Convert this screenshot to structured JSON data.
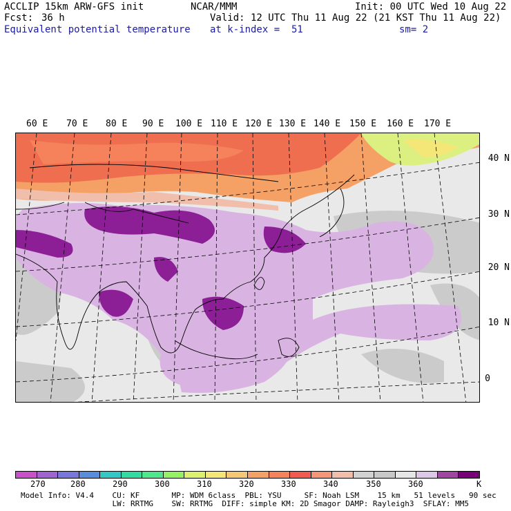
{
  "header": {
    "model": "ACCLIP 15km ARW-GFS init",
    "center": "NCAR/MMM",
    "init": "Init: 00 UTC Wed 10 Aug 22",
    "fcst_label": "Fcst:",
    "fcst_value": "36 h",
    "valid": "Valid: 12 UTC Thu 11 Aug 22 (21 KST Thu 11 Aug 22)",
    "field": "Equivalent potential temperature",
    "level": "at k-index =  51",
    "smoothing": "sm= 2"
  },
  "map": {
    "lon_labels": [
      "60 E",
      "70 E",
      "80 E",
      "90 E",
      "100 E",
      "110 E",
      "120 E",
      "130 E",
      "140 E",
      "150 E",
      "160 E",
      "170 E"
    ],
    "lat_labels": [
      "40 N",
      "30 N",
      "20 N",
      "10 N",
      "0"
    ],
    "colors": {
      "ocean_base": "#e6e6e6",
      "dark_purple": "#8c1e96",
      "light_purple": "#d2aadc",
      "north_red": "#f06e50",
      "north_orange": "#f5a064",
      "yellow_green": "#dcf082",
      "grey": "#c8c8c8"
    }
  },
  "colorbar": {
    "swatches": [
      "#c850c8",
      "#a064d2",
      "#7878dc",
      "#5a8cdc",
      "#32c8c8",
      "#32dca0",
      "#50e68c",
      "#96f064",
      "#dcf06e",
      "#f5e678",
      "#f5c878",
      "#f5a064",
      "#f5825a",
      "#f05a50",
      "#f59678",
      "#f0beaa",
      "#d2d2d2",
      "#c8c8c8",
      "#e6e6e6",
      "#dcc8e6",
      "#a046a0",
      "#780078"
    ],
    "labels": [
      "270",
      "280",
      "290",
      "300",
      "310",
      "320",
      "330",
      "340",
      "350",
      "360"
    ],
    "unit": "K"
  },
  "footer": {
    "line1": "Model Info: V4.4    CU: KF       MP: WDM 6class  PBL: YSU     SF: Noah LSM    15 km   51 levels   90 sec",
    "line2": "                    LW: RRTMG    SW: RRTMG  DIFF: simple KM: 2D Smagor DAMP: Rayleigh3  SFLAY: MM5"
  }
}
